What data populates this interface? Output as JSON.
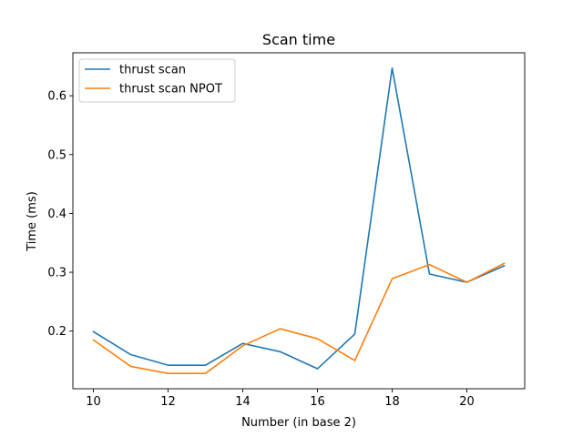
{
  "chart_data": {
    "type": "line",
    "title": "Scan time",
    "xlabel": "Number (in base 2)",
    "ylabel": "Time (ms)",
    "x": [
      10,
      11,
      12,
      13,
      14,
      15,
      16,
      17,
      18,
      19,
      20,
      21
    ],
    "xlim": [
      9.45,
      21.55
    ],
    "ylim": [
      0.102,
      0.673
    ],
    "xticks": [
      10,
      12,
      14,
      16,
      18,
      20
    ],
    "yticks": [
      0.2,
      0.3,
      0.4,
      0.5,
      0.6
    ],
    "ytick_labels": [
      "0.2",
      "0.3",
      "0.4",
      "0.5",
      "0.6"
    ],
    "grid": false,
    "legend_position": "upper-left",
    "series": [
      {
        "name": "thrust scan",
        "color": "#1f77b4",
        "values": [
          0.199,
          0.16,
          0.142,
          0.142,
          0.179,
          0.165,
          0.136,
          0.195,
          0.647,
          0.297,
          0.283,
          0.311
        ]
      },
      {
        "name": "thrust scan NPOT",
        "color": "#ff7f0e",
        "values": [
          0.185,
          0.14,
          0.128,
          0.128,
          0.175,
          0.204,
          0.187,
          0.15,
          0.289,
          0.313,
          0.283,
          0.315
        ]
      }
    ]
  }
}
